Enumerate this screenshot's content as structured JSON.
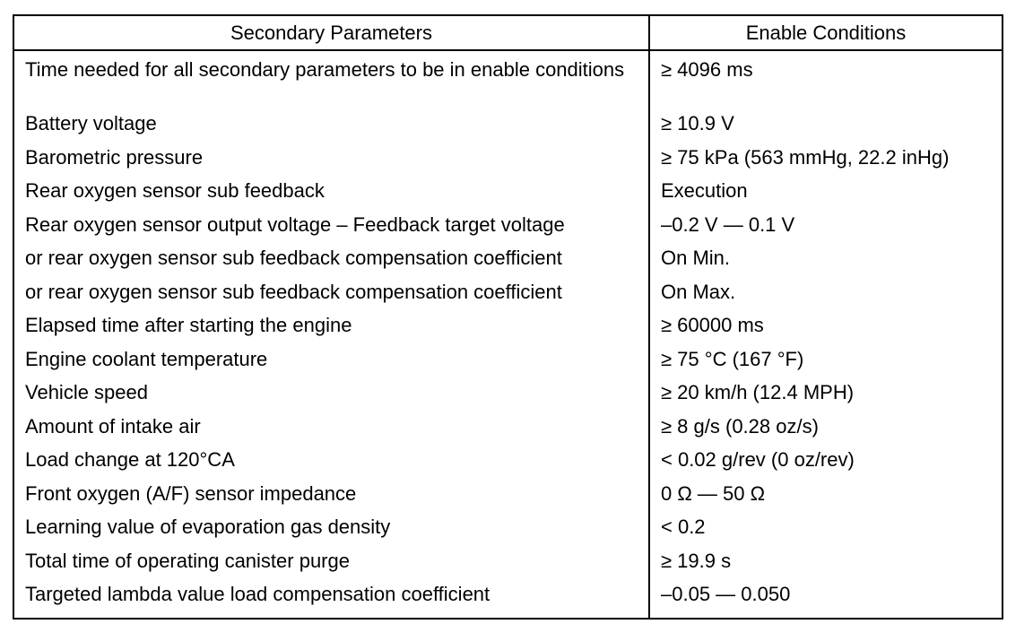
{
  "table": {
    "headers": {
      "parameter": "Secondary Parameters",
      "condition": "Enable Conditions"
    },
    "rows": [
      {
        "parameter": "Time needed for all secondary parameters to be in enable conditions",
        "condition": "≥ 4096 ms"
      },
      {
        "parameter": "Battery voltage",
        "condition": "≥ 10.9 V"
      },
      {
        "parameter": "Barometric pressure",
        "condition": "≥ 75 kPa (563 mmHg, 22.2 inHg)"
      },
      {
        "parameter": "Rear oxygen sensor sub feedback",
        "condition": "Execution"
      },
      {
        "parameter": "Rear oxygen sensor output voltage – Feedback target voltage",
        "condition": "–0.2 V — 0.1 V"
      },
      {
        "parameter": "or rear oxygen sensor sub feedback compensation coefficient",
        "condition": "On Min."
      },
      {
        "parameter": "or rear oxygen sensor sub feedback compensation coefficient",
        "condition": "On Max."
      },
      {
        "parameter": "Elapsed time after starting the engine",
        "condition": "≥ 60000 ms"
      },
      {
        "parameter": "Engine coolant temperature",
        "condition": "≥ 75 °C (167 °F)"
      },
      {
        "parameter": "Vehicle speed",
        "condition": "≥ 20 km/h (12.4 MPH)"
      },
      {
        "parameter": "Amount of intake air",
        "condition": "≥ 8 g/s (0.28 oz/s)"
      },
      {
        "parameter": "Load change at 120°CA",
        "condition": "< 0.02 g/rev (0 oz/rev)"
      },
      {
        "parameter": "Front oxygen (A/F) sensor impedance",
        "condition": "0 Ω — 50 Ω"
      },
      {
        "parameter": "Learning value of evaporation gas density",
        "condition": "< 0.2"
      },
      {
        "parameter": "Total time of operating canister purge",
        "condition": "≥ 19.9 s"
      },
      {
        "parameter": "Targeted lambda value load compensation coefficient",
        "condition": "–0.05  — 0.050"
      }
    ]
  }
}
